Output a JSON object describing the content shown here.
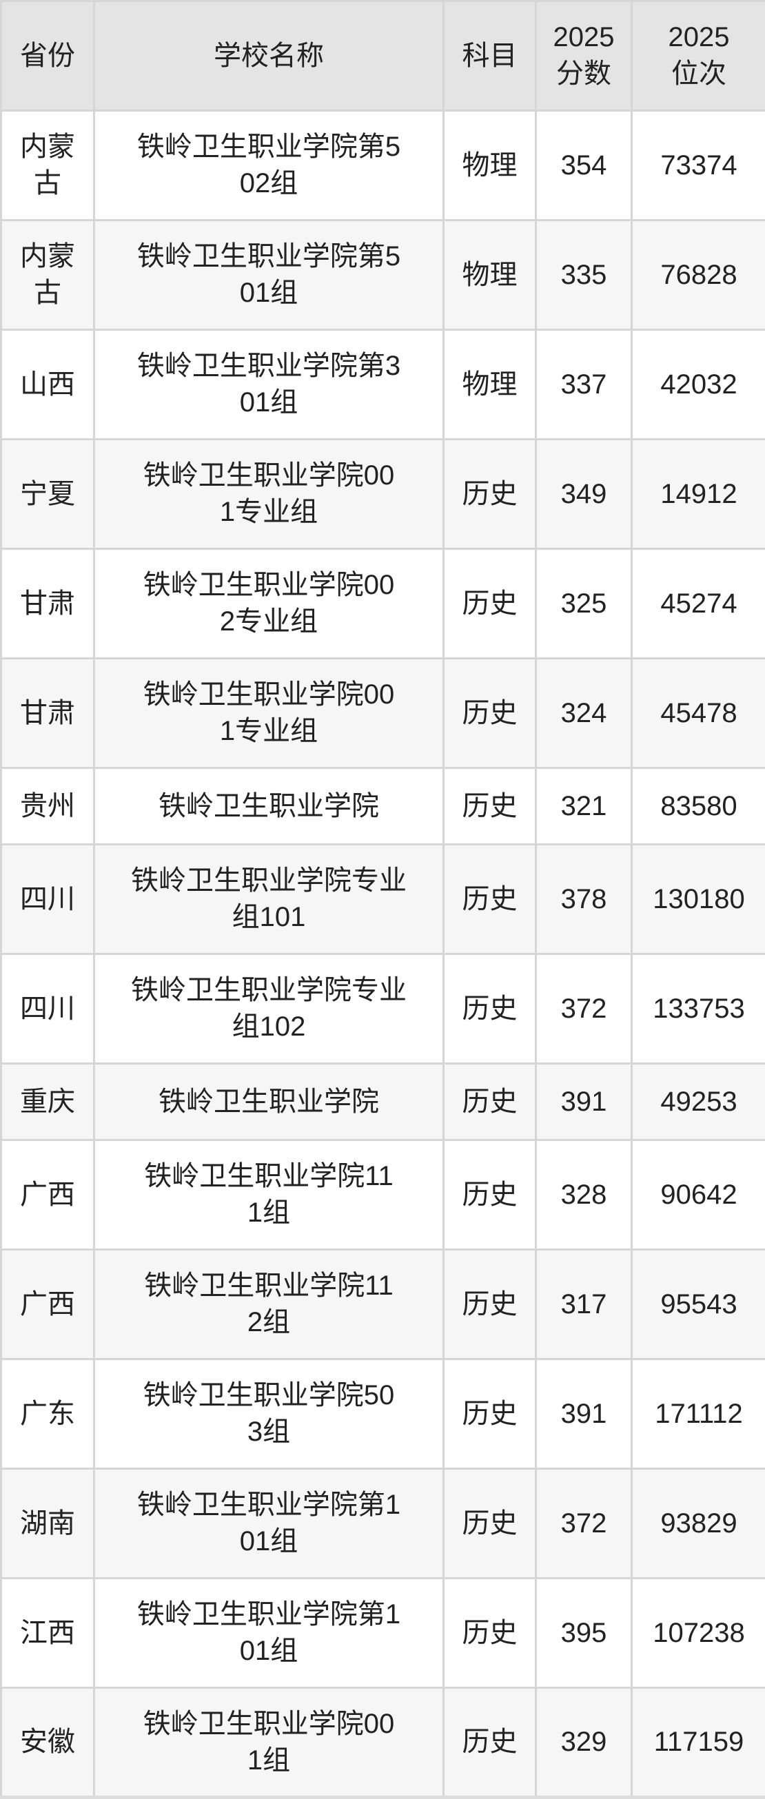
{
  "colors": {
    "header_bg": "#e4e4e4",
    "row_bg": "#ffffff",
    "row_alt_bg": "#f6f6f6",
    "border": "#d6d6d6",
    "text": "#222222"
  },
  "table": {
    "columns": [
      {
        "key": "province",
        "label": "省份"
      },
      {
        "key": "school",
        "label": "学校名称"
      },
      {
        "key": "subject",
        "label": "科目"
      },
      {
        "key": "score",
        "label": "2025\n分数"
      },
      {
        "key": "rank",
        "label": "2025\n位次"
      }
    ],
    "rows": [
      {
        "province": "内蒙\n古",
        "school": "铁岭卫生职业学院第5\n02组",
        "subject": "物理",
        "score": "354",
        "rank": "73374"
      },
      {
        "province": "内蒙\n古",
        "school": "铁岭卫生职业学院第5\n01组",
        "subject": "物理",
        "score": "335",
        "rank": "76828"
      },
      {
        "province": "山西",
        "school": "铁岭卫生职业学院第3\n01组",
        "subject": "物理",
        "score": "337",
        "rank": "42032"
      },
      {
        "province": "宁夏",
        "school": "铁岭卫生职业学院00\n1专业组",
        "subject": "历史",
        "score": "349",
        "rank": "14912"
      },
      {
        "province": "甘肃",
        "school": "铁岭卫生职业学院00\n2专业组",
        "subject": "历史",
        "score": "325",
        "rank": "45274"
      },
      {
        "province": "甘肃",
        "school": "铁岭卫生职业学院00\n1专业组",
        "subject": "历史",
        "score": "324",
        "rank": "45478"
      },
      {
        "province": "贵州",
        "school": "铁岭卫生职业学院",
        "subject": "历史",
        "score": "321",
        "rank": "83580"
      },
      {
        "province": "四川",
        "school": "铁岭卫生职业学院专业\n组101",
        "subject": "历史",
        "score": "378",
        "rank": "130180"
      },
      {
        "province": "四川",
        "school": "铁岭卫生职业学院专业\n组102",
        "subject": "历史",
        "score": "372",
        "rank": "133753"
      },
      {
        "province": "重庆",
        "school": "铁岭卫生职业学院",
        "subject": "历史",
        "score": "391",
        "rank": "49253"
      },
      {
        "province": "广西",
        "school": "铁岭卫生职业学院11\n1组",
        "subject": "历史",
        "score": "328",
        "rank": "90642"
      },
      {
        "province": "广西",
        "school": "铁岭卫生职业学院11\n2组",
        "subject": "历史",
        "score": "317",
        "rank": "95543"
      },
      {
        "province": "广东",
        "school": "铁岭卫生职业学院50\n3组",
        "subject": "历史",
        "score": "391",
        "rank": "171112"
      },
      {
        "province": "湖南",
        "school": "铁岭卫生职业学院第1\n01组",
        "subject": "历史",
        "score": "372",
        "rank": "93829"
      },
      {
        "province": "江西",
        "school": "铁岭卫生职业学院第1\n01组",
        "subject": "历史",
        "score": "395",
        "rank": "107238"
      },
      {
        "province": "安徽",
        "school": "铁岭卫生职业学院00\n1组",
        "subject": "历史",
        "score": "329",
        "rank": "117159"
      }
    ]
  }
}
